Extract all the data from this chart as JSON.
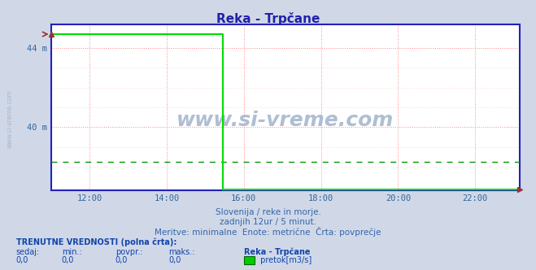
{
  "title": "Reka - Trpčane",
  "background_color": "#d0d8e8",
  "plot_bg_color": "#ffffff",
  "x_min": 11.0,
  "x_max": 23.16,
  "x_ticks": [
    12,
    14,
    16,
    18,
    20,
    22
  ],
  "x_tick_labels": [
    "12:00",
    "14:00",
    "16:00",
    "18:00",
    "20:00",
    "22:00"
  ],
  "y_min": 36.8,
  "y_max": 45.2,
  "y_ticks": [
    40,
    44
  ],
  "y_tick_labels": [
    "40 m",
    "44 m"
  ],
  "dashed_line_y": 38.25,
  "line_color": "#00dd00",
  "line_high_y": 44.7,
  "line_drop_x": 15.45,
  "line_bottom_y": 36.85,
  "axis_color": "#2222bb",
  "tick_color": "#336699",
  "watermark_color": "#a0b4cc",
  "watermark_text": "www.si-vreme.com",
  "sidebar_text": "www.si-vreme.com",
  "subtitle1": "Slovenija / reke in morje.",
  "subtitle2": "zadnjih 12ur / 5 minut.",
  "subtitle3": "Meritve: minimalne  Enote: metrične  Črta: povprečje",
  "footer_bold": "TRENUTNE VREDNOSTI (polna črta):",
  "footer_cols": [
    "sedaj:",
    "min.:",
    "povpr.:",
    "maks.:",
    "Reka - Trpčane"
  ],
  "footer_vals": [
    "0,0",
    "0,0",
    "0,0",
    "0,0"
  ],
  "legend_color": "#00cc00",
  "legend_label": " pretok[m3/s]",
  "title_color": "#2222aa",
  "subtitle_color": "#3366aa",
  "footer_color": "#1144aa",
  "arrow_color": "#993333",
  "grid_red": "#ff8888",
  "grid_pink": "#ffcccc"
}
